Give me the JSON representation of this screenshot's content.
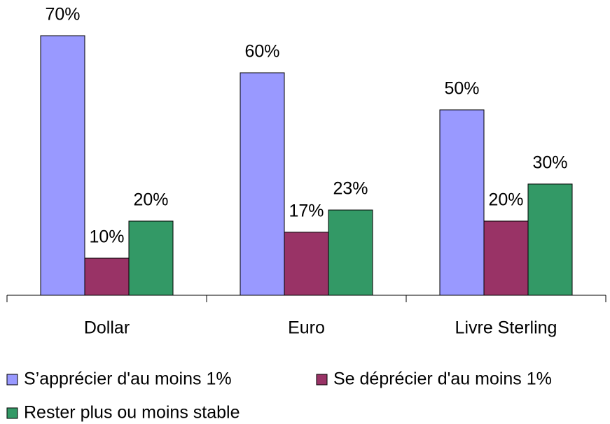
{
  "chart_data": {
    "type": "bar",
    "categories": [
      "Dollar",
      "Euro",
      "Livre Sterling"
    ],
    "series": [
      {
        "name": "S’apprécier d'au moins 1%",
        "color": "#9999ff",
        "values": [
          70,
          60,
          50
        ],
        "value_labels": [
          "70%",
          "60%",
          "50%"
        ]
      },
      {
        "name": "Se déprécier d'au moins 1%",
        "color": "#993366",
        "values": [
          10,
          17,
          20
        ],
        "value_labels": [
          "10%",
          "17%",
          "20%"
        ]
      },
      {
        "name": "Rester plus ou moins stable",
        "color": "#339966",
        "values": [
          20,
          23,
          30
        ],
        "value_labels": [
          "20%",
          "23%",
          "30%"
        ]
      }
    ],
    "legend": "bottom"
  }
}
